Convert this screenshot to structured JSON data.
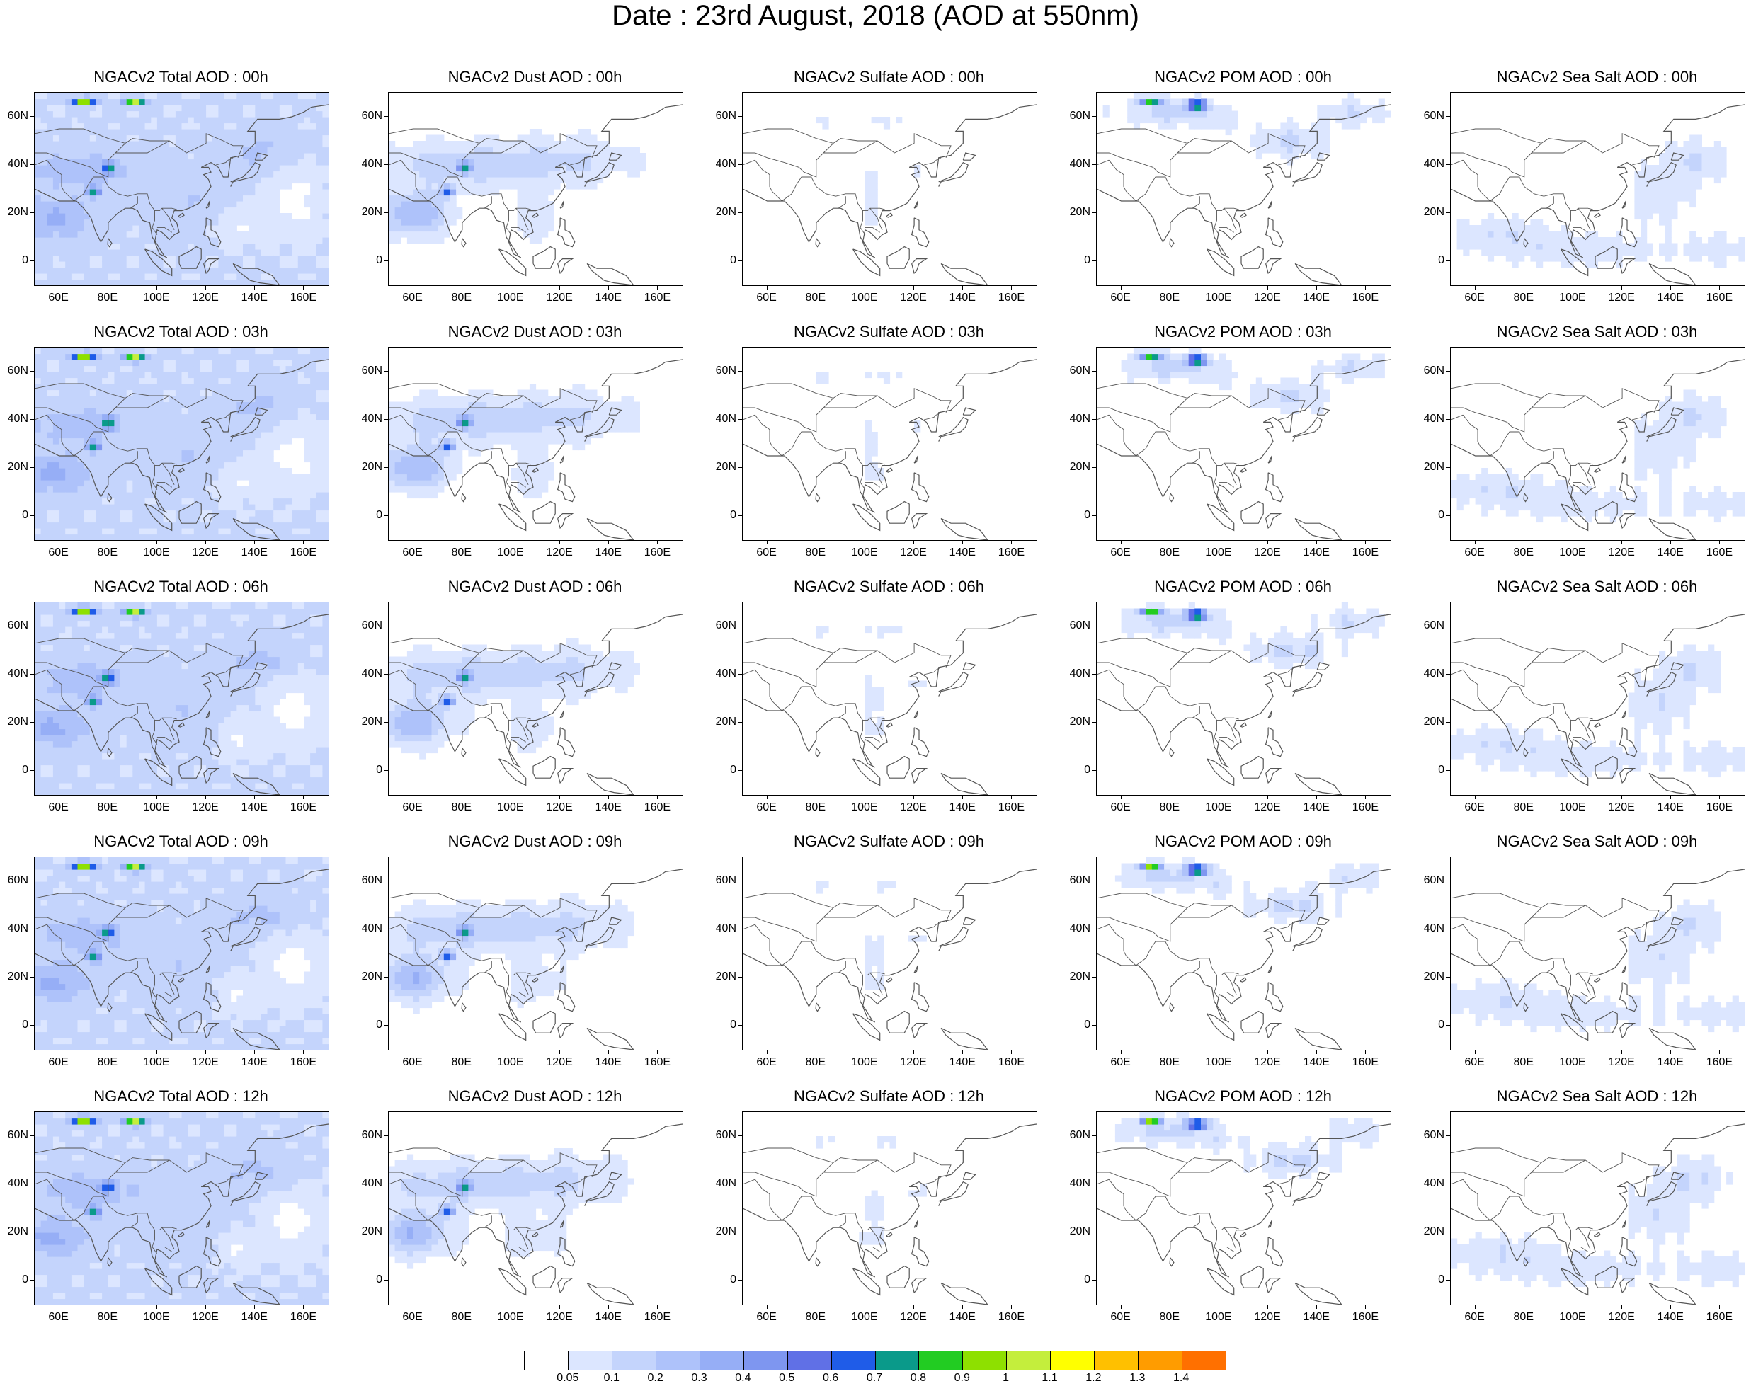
{
  "title": "Date : 23rd August, 2018 (AOD at 550nm)",
  "panel_titles": [
    [
      "NGACv2 Total AOD : 00h",
      "NGACv2 Dust AOD : 00h",
      "NGACv2 Sulfate AOD : 00h",
      "NGACv2 POM AOD : 00h",
      "NGACv2 Sea Salt AOD : 00h"
    ],
    [
      "NGACv2 Total AOD : 03h",
      "NGACv2 Dust AOD : 03h",
      "NGACv2 Sulfate AOD : 03h",
      "NGACv2 POM AOD : 03h",
      "NGACv2 Sea Salt AOD : 03h"
    ],
    [
      "NGACv2 Total AOD : 06h",
      "NGACv2 Dust AOD : 06h",
      "NGACv2 Sulfate AOD : 06h",
      "NGACv2 POM AOD : 06h",
      "NGACv2 Sea Salt AOD : 06h"
    ],
    [
      "NGACv2 Total AOD : 09h",
      "NGACv2 Dust AOD : 09h",
      "NGACv2 Sulfate AOD : 09h",
      "NGACv2 POM AOD : 09h",
      "NGACv2 Sea Salt  AOD : 09h"
    ],
    [
      "NGACv2 Total AOD  : 12h",
      "NGACv2 Dust AOD : 12h",
      "NGACv2 Sulfate AOD : 12h",
      "NGACv2 POM  AOD : 12h",
      "NGACv2 Sea Salt  AOD : 12h"
    ]
  ],
  "map": {
    "extent": {
      "lon_min": 50,
      "lon_max": 170,
      "lat_min": -10,
      "lat_max": 70
    },
    "lon_ticks": [
      60,
      80,
      100,
      120,
      140,
      160
    ],
    "lon_tick_labels": [
      "60E",
      "80E",
      "100E",
      "120E",
      "140E",
      "160E"
    ],
    "lat_ticks": [
      60,
      40,
      20,
      0
    ],
    "lat_tick_labels": [
      "60N",
      "40N",
      "20N",
      "0"
    ],
    "coastline_color": "#555555"
  },
  "colorbar": {
    "colors": [
      "#ffffff",
      "#dce6ff",
      "#c4d4fc",
      "#aec2fa",
      "#96aef6",
      "#7e96f0",
      "#6070e6",
      "#1f5ce8",
      "#0a9a8a",
      "#22cc22",
      "#8ee000",
      "#c4ee3c",
      "#ffff00",
      "#ffc000",
      "#ff9c00",
      "#ff7000",
      "#ff2020"
    ],
    "labels": [
      "0.05",
      "0.1",
      "0.2",
      "0.3",
      "0.4",
      "0.5",
      "0.6",
      "0.7",
      "0.8",
      "0.9",
      "1",
      "1.1",
      "1.2",
      "1.3",
      "1.4"
    ]
  }
}
